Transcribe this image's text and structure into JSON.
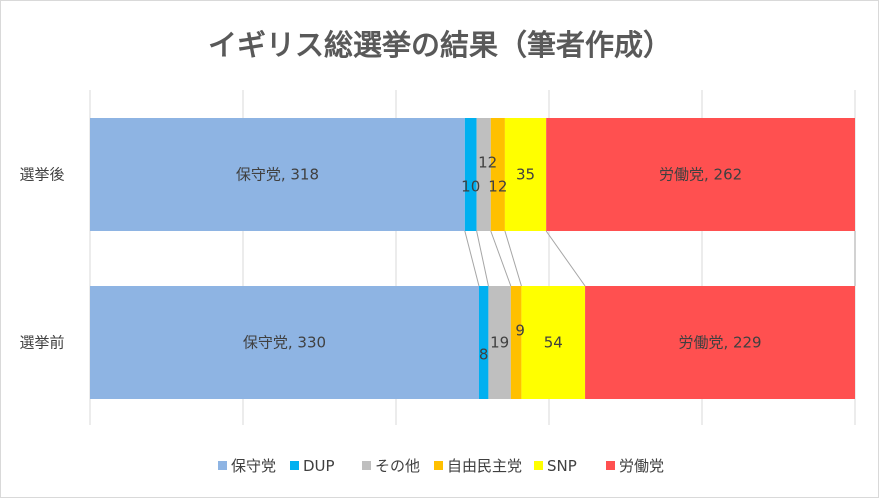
{
  "chart_data": {
    "type": "bar",
    "orientation": "horizontal",
    "stacked": "100%",
    "title": "イギリス総選挙の結果（筆者作成）",
    "categories": [
      "選挙後",
      "選挙前"
    ],
    "series": [
      {
        "name": "保守党",
        "values": [
          318,
          330
        ],
        "color": "#8eb4e3",
        "labels": [
          "保守党, 318",
          "保守党, 330"
        ]
      },
      {
        "name": "DUP",
        "values": [
          10,
          8
        ],
        "color": "#00b0f0",
        "labels": [
          "10",
          "8"
        ]
      },
      {
        "name": "その他",
        "values": [
          12,
          19
        ],
        "color": "#bfbfbf",
        "labels": [
          "12",
          "19"
        ]
      },
      {
        "name": "自由民主党",
        "values": [
          12,
          9
        ],
        "color": "#ffc000",
        "labels": [
          "12",
          "9"
        ]
      },
      {
        "name": "SNP",
        "values": [
          35,
          54
        ],
        "color": "#ffff00",
        "labels": [
          "35",
          "54"
        ]
      },
      {
        "name": "労働党",
        "values": [
          262,
          229
        ],
        "color": "#ff5050",
        "labels": [
          "労働党, 262",
          "労働党, 229"
        ]
      }
    ],
    "grid": true,
    "series_lines": true,
    "legend_position": "bottom"
  }
}
